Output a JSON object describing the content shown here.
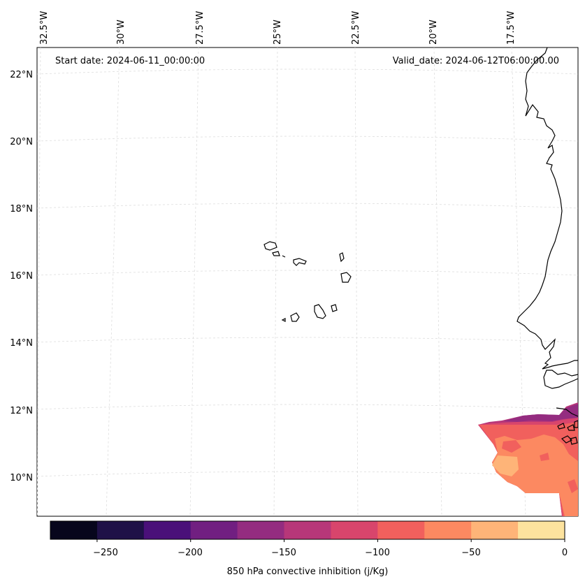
{
  "map": {
    "start_date": "Start date: 2024-06-11_00:00:00",
    "valid_date": "Valid_date: 2024-06-12T06:00:00.00",
    "lon_labels": [
      "32.5°W",
      "30°W",
      "27.5°W",
      "25°W",
      "22.5°W",
      "20°W",
      "17.5°W"
    ],
    "lat_labels": [
      "22°N",
      "20°N",
      "18°N",
      "16°N",
      "14°N",
      "12°N",
      "10°N"
    ],
    "coastline_color": "#000000",
    "gridline_color": "#dddddd"
  },
  "colorbar": {
    "title": "850 hPa convective inhibition (j/Kg)",
    "tick_labels": [
      "−250",
      "−200",
      "−150",
      "−100",
      "−50",
      "0"
    ],
    "levels": [
      -275,
      -250,
      -225,
      -200,
      -175,
      -150,
      -125,
      -100,
      -75,
      -50,
      -25,
      0
    ],
    "colors": [
      "#07061c",
      "#1f1147",
      "#4a1079",
      "#711f81",
      "#942c80",
      "#b73779",
      "#d8456c",
      "#f1605d",
      "#fc8961",
      "#feb478",
      "#fde39e"
    ]
  }
}
